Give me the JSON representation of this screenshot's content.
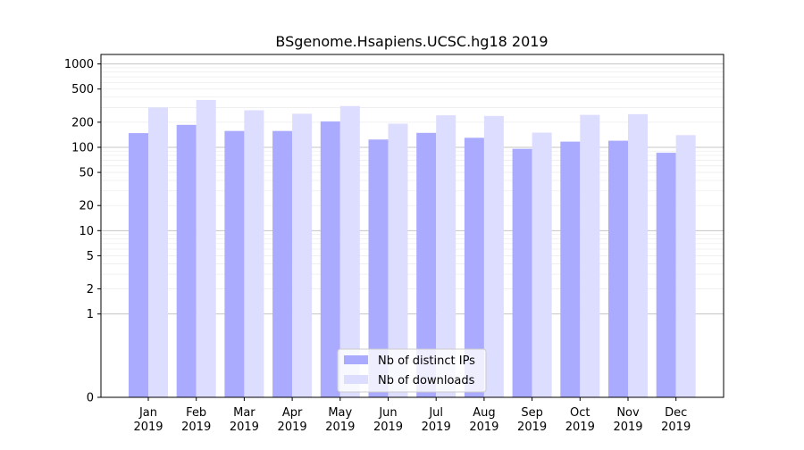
{
  "chart_data": {
    "type": "bar",
    "title": "BSgenome.Hsapiens.UCSC.hg18 2019",
    "xlabel": "",
    "ylabel": "",
    "yscale": "symlog",
    "ylim": [
      0,
      1300
    ],
    "grid": true,
    "legend_position": "bottom-center",
    "categories": [
      "Jan\n2019",
      "Feb\n2019",
      "Mar\n2019",
      "Apr\n2019",
      "May\n2019",
      "Jun\n2019",
      "Jul\n2019",
      "Aug\n2019",
      "Sep\n2019",
      "Oct\n2019",
      "Nov\n2019",
      "Dec\n2019"
    ],
    "yticks": [
      0,
      1,
      2,
      5,
      10,
      20,
      50,
      100,
      200,
      500,
      1000
    ],
    "series": [
      {
        "name": "Nb of distinct IPs",
        "color": "#aaaaff",
        "values": [
          148,
          186,
          157,
          157,
          204,
          124,
          149,
          130,
          96,
          117,
          120,
          86
        ]
      },
      {
        "name": "Nb of downloads",
        "color": "#ddddff",
        "values": [
          300,
          370,
          278,
          253,
          313,
          192,
          242,
          238,
          150,
          245,
          250,
          140
        ]
      }
    ]
  }
}
